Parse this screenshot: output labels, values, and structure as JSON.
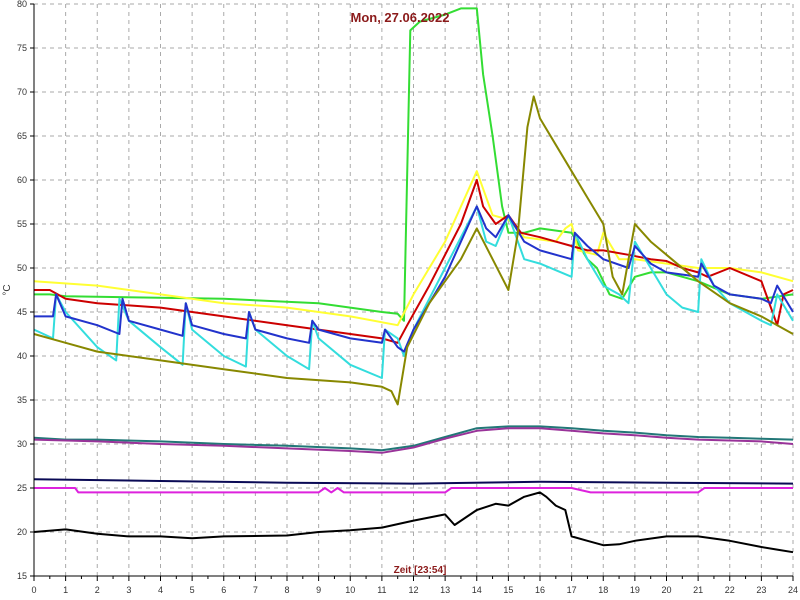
{
  "chart_data": {
    "type": "line",
    "title": "Mon, 27.06.2022",
    "xlabel": "Zeit [23:54]",
    "ylabel": "°C",
    "xlim": [
      0,
      24
    ],
    "ylim": [
      15,
      80
    ],
    "x_ticks": [
      0,
      1,
      2,
      3,
      4,
      5,
      6,
      7,
      8,
      9,
      10,
      11,
      12,
      13,
      14,
      15,
      16,
      17,
      18,
      19,
      20,
      21,
      22,
      23,
      24
    ],
    "y_ticks": [
      15,
      20,
      25,
      30,
      35,
      40,
      45,
      50,
      55,
      60,
      65,
      70,
      75,
      80
    ],
    "grid": true,
    "series": [
      {
        "color": "#33dd33",
        "points": [
          [
            0,
            47
          ],
          [
            0.5,
            47
          ],
          [
            1,
            46.8
          ],
          [
            6,
            46.5
          ],
          [
            9,
            46
          ],
          [
            11,
            45
          ],
          [
            11.5,
            44.8
          ],
          [
            11.7,
            44
          ],
          [
            11.9,
            77
          ],
          [
            12.2,
            78
          ],
          [
            13,
            78.8
          ],
          [
            13.5,
            79.5
          ],
          [
            14,
            79.5
          ],
          [
            14.2,
            72
          ],
          [
            14.5,
            65
          ],
          [
            14.8,
            57
          ],
          [
            15,
            54
          ],
          [
            15.5,
            54
          ],
          [
            16,
            54.5
          ],
          [
            17,
            54
          ],
          [
            17.5,
            51
          ],
          [
            17.8,
            50
          ],
          [
            18.2,
            47
          ],
          [
            18.6,
            46.5
          ],
          [
            19,
            49
          ],
          [
            19.5,
            49.5
          ],
          [
            20,
            49.5
          ],
          [
            21,
            48.5
          ],
          [
            22,
            47
          ],
          [
            23,
            46.5
          ],
          [
            24,
            47
          ]
        ]
      },
      {
        "color": "#ffff33",
        "points": [
          [
            0,
            48.5
          ],
          [
            2,
            48
          ],
          [
            4,
            47
          ],
          [
            6,
            46
          ],
          [
            8,
            45.5
          ],
          [
            10,
            44.5
          ],
          [
            11.5,
            43.5
          ],
          [
            12,
            47
          ],
          [
            13,
            53
          ],
          [
            14,
            61
          ],
          [
            14.5,
            56
          ],
          [
            15,
            55.5
          ],
          [
            15.5,
            53.5
          ],
          [
            16.5,
            53
          ],
          [
            16.8,
            54.5
          ],
          [
            17,
            55
          ],
          [
            17.2,
            52
          ],
          [
            17.8,
            51.5
          ],
          [
            18,
            54
          ],
          [
            18.5,
            51
          ],
          [
            19,
            51
          ],
          [
            20,
            50.5
          ],
          [
            21,
            50
          ],
          [
            22,
            50
          ],
          [
            23,
            49.5
          ],
          [
            24,
            48.5
          ]
        ]
      },
      {
        "color": "#cc0000",
        "points": [
          [
            0,
            47.5
          ],
          [
            0.5,
            47.5
          ],
          [
            1,
            46.5
          ],
          [
            2,
            46
          ],
          [
            4,
            45.5
          ],
          [
            6,
            44.5
          ],
          [
            8,
            43.5
          ],
          [
            10,
            42.5
          ],
          [
            11,
            42
          ],
          [
            11.5,
            41.5
          ],
          [
            11.8,
            43.5
          ],
          [
            12.5,
            48
          ],
          [
            13.5,
            55
          ],
          [
            14,
            60
          ],
          [
            14.2,
            57
          ],
          [
            14.6,
            55
          ],
          [
            15,
            56
          ],
          [
            15.4,
            54
          ],
          [
            16,
            53.5
          ],
          [
            17,
            52.5
          ],
          [
            17.5,
            52
          ],
          [
            18,
            52
          ],
          [
            18.8,
            51.5
          ],
          [
            19.5,
            51
          ],
          [
            20,
            50.8
          ],
          [
            20.5,
            50
          ],
          [
            21,
            49.5
          ],
          [
            21.3,
            49
          ],
          [
            22,
            50
          ],
          [
            23,
            48.5
          ],
          [
            23.5,
            43.5
          ],
          [
            23.7,
            47
          ],
          [
            24,
            47.5
          ]
        ]
      },
      {
        "color": "#33dddd",
        "points": [
          [
            0,
            43
          ],
          [
            0.6,
            42
          ],
          [
            0.7,
            47
          ],
          [
            1,
            45
          ],
          [
            2,
            41
          ],
          [
            2.6,
            39.5
          ],
          [
            2.7,
            46.5
          ],
          [
            3,
            44
          ],
          [
            4,
            41
          ],
          [
            4.7,
            39
          ],
          [
            4.8,
            46
          ],
          [
            5,
            43
          ],
          [
            6,
            40
          ],
          [
            6.7,
            38.8
          ],
          [
            6.8,
            45
          ],
          [
            7,
            43
          ],
          [
            8,
            40
          ],
          [
            8.7,
            38.5
          ],
          [
            8.8,
            44
          ],
          [
            9,
            42
          ],
          [
            10,
            39
          ],
          [
            11,
            37.5
          ],
          [
            11.1,
            43
          ],
          [
            11.5,
            42
          ],
          [
            11.7,
            40
          ],
          [
            12,
            43
          ],
          [
            13,
            50
          ],
          [
            14,
            57
          ],
          [
            14.3,
            53
          ],
          [
            14.6,
            52.5
          ],
          [
            15,
            56
          ],
          [
            15.5,
            51
          ],
          [
            16,
            50.5
          ],
          [
            17,
            49
          ],
          [
            17.1,
            54
          ],
          [
            17.5,
            51
          ],
          [
            18,
            48
          ],
          [
            18.5,
            47
          ],
          [
            18.8,
            46
          ],
          [
            19,
            53
          ],
          [
            19.5,
            50
          ],
          [
            20,
            47
          ],
          [
            20.5,
            45.5
          ],
          [
            21,
            45
          ],
          [
            21.1,
            51
          ],
          [
            21.5,
            48
          ],
          [
            22,
            46
          ],
          [
            23,
            44
          ],
          [
            23.3,
            43.5
          ],
          [
            23.5,
            47
          ],
          [
            24,
            44
          ]
        ]
      },
      {
        "color": "#2233cc",
        "points": [
          [
            0,
            44.5
          ],
          [
            0.6,
            44.5
          ],
          [
            0.7,
            47
          ],
          [
            1,
            44.5
          ],
          [
            2,
            43.5
          ],
          [
            2.7,
            42.5
          ],
          [
            2.8,
            46.5
          ],
          [
            3,
            44
          ],
          [
            4,
            43
          ],
          [
            4.7,
            42.3
          ],
          [
            4.8,
            46
          ],
          [
            5,
            43.5
          ],
          [
            6,
            42.5
          ],
          [
            6.7,
            42
          ],
          [
            6.8,
            45
          ],
          [
            7,
            43
          ],
          [
            8,
            42
          ],
          [
            8.7,
            41.5
          ],
          [
            8.8,
            44
          ],
          [
            9,
            43
          ],
          [
            10,
            42
          ],
          [
            11,
            41.5
          ],
          [
            11.1,
            43
          ],
          [
            11.5,
            41
          ],
          [
            11.7,
            40.5
          ],
          [
            12,
            43
          ],
          [
            13,
            49
          ],
          [
            14,
            57
          ],
          [
            14.3,
            54.5
          ],
          [
            14.6,
            53.5
          ],
          [
            15,
            56
          ],
          [
            15.5,
            53
          ],
          [
            16,
            52
          ],
          [
            17,
            51
          ],
          [
            17.1,
            54
          ],
          [
            17.5,
            52.5
          ],
          [
            18,
            51
          ],
          [
            18.8,
            50
          ],
          [
            19,
            52.5
          ],
          [
            19.5,
            50.5
          ],
          [
            20,
            49.5
          ],
          [
            21,
            49
          ],
          [
            21.1,
            50.5
          ],
          [
            21.5,
            48
          ],
          [
            22,
            47
          ],
          [
            23,
            46.5
          ],
          [
            23.3,
            46
          ],
          [
            23.5,
            48
          ],
          [
            24,
            45
          ]
        ]
      },
      {
        "color": "#888800",
        "points": [
          [
            0,
            42.5
          ],
          [
            1,
            41.5
          ],
          [
            2,
            40.5
          ],
          [
            4,
            39.5
          ],
          [
            6,
            38.5
          ],
          [
            8,
            37.5
          ],
          [
            10,
            37
          ],
          [
            11,
            36.5
          ],
          [
            11.3,
            36
          ],
          [
            11.5,
            34.5
          ],
          [
            11.8,
            41
          ],
          [
            12.5,
            46
          ],
          [
            13.5,
            51
          ],
          [
            14,
            54.5
          ],
          [
            14.5,
            51
          ],
          [
            15,
            47.5
          ],
          [
            15.3,
            54
          ],
          [
            15.6,
            66
          ],
          [
            15.8,
            69.5
          ],
          [
            16,
            67
          ],
          [
            16.5,
            64
          ],
          [
            17,
            61
          ],
          [
            17.5,
            58
          ],
          [
            18,
            55
          ],
          [
            18.3,
            49
          ],
          [
            18.6,
            47
          ],
          [
            19,
            55
          ],
          [
            19.5,
            53
          ],
          [
            20,
            51.5
          ],
          [
            21,
            48.5
          ],
          [
            22,
            46
          ],
          [
            23,
            44.5
          ],
          [
            23.5,
            43.5
          ],
          [
            24,
            42.5
          ]
        ]
      },
      {
        "color": "#227777",
        "points": [
          [
            0,
            30.7
          ],
          [
            1,
            30.5
          ],
          [
            2,
            30.5
          ],
          [
            4,
            30.3
          ],
          [
            6,
            30
          ],
          [
            8,
            29.8
          ],
          [
            10,
            29.5
          ],
          [
            11,
            29.3
          ],
          [
            12,
            29.8
          ],
          [
            13,
            30.8
          ],
          [
            14,
            31.8
          ],
          [
            15,
            32
          ],
          [
            16,
            32
          ],
          [
            17,
            31.8
          ],
          [
            18,
            31.5
          ],
          [
            19,
            31.3
          ],
          [
            20,
            31
          ],
          [
            21,
            30.8
          ],
          [
            22,
            30.7
          ],
          [
            23,
            30.6
          ],
          [
            24,
            30.5
          ]
        ]
      },
      {
        "color": "#993399",
        "points": [
          [
            0,
            30.5
          ],
          [
            2,
            30.3
          ],
          [
            4,
            30
          ],
          [
            6,
            29.8
          ],
          [
            8,
            29.5
          ],
          [
            10,
            29.2
          ],
          [
            11,
            29
          ],
          [
            12,
            29.6
          ],
          [
            13,
            30.6
          ],
          [
            14,
            31.5
          ],
          [
            15,
            31.8
          ],
          [
            16,
            31.8
          ],
          [
            17,
            31.5
          ],
          [
            18,
            31.2
          ],
          [
            19,
            31
          ],
          [
            20,
            30.7
          ],
          [
            21,
            30.5
          ],
          [
            22,
            30.4
          ],
          [
            23,
            30.3
          ],
          [
            24,
            30
          ]
        ]
      },
      {
        "color": "#0a0a55",
        "points": [
          [
            0,
            26
          ],
          [
            4,
            25.8
          ],
          [
            8,
            25.6
          ],
          [
            12,
            25.5
          ],
          [
            16,
            25.7
          ],
          [
            20,
            25.6
          ],
          [
            24,
            25.5
          ]
        ]
      },
      {
        "color": "#dd22dd",
        "points": [
          [
            0,
            25
          ],
          [
            1.3,
            25
          ],
          [
            1.4,
            24.5
          ],
          [
            9,
            24.5
          ],
          [
            9.2,
            25
          ],
          [
            9.4,
            24.5
          ],
          [
            9.6,
            25
          ],
          [
            9.8,
            24.5
          ],
          [
            13,
            24.5
          ],
          [
            13.2,
            25
          ],
          [
            17,
            25
          ],
          [
            17.6,
            24.5
          ],
          [
            21,
            24.5
          ],
          [
            21.2,
            25
          ],
          [
            24,
            25
          ]
        ]
      },
      {
        "color": "#000000",
        "points": [
          [
            0,
            20
          ],
          [
            1,
            20.3
          ],
          [
            2,
            19.8
          ],
          [
            3,
            19.5
          ],
          [
            4,
            19.5
          ],
          [
            5,
            19.3
          ],
          [
            6,
            19.5
          ],
          [
            8,
            19.6
          ],
          [
            9,
            20
          ],
          [
            10,
            20.2
          ],
          [
            11,
            20.5
          ],
          [
            12,
            21.3
          ],
          [
            13,
            22
          ],
          [
            13.3,
            20.8
          ],
          [
            14,
            22.5
          ],
          [
            14.6,
            23.2
          ],
          [
            15,
            23
          ],
          [
            15.5,
            24
          ],
          [
            16,
            24.5
          ],
          [
            16.2,
            24
          ],
          [
            16.5,
            23
          ],
          [
            16.8,
            22.5
          ],
          [
            17,
            19.5
          ],
          [
            17.5,
            19
          ],
          [
            18,
            18.5
          ],
          [
            18.5,
            18.6
          ],
          [
            19,
            19
          ],
          [
            20,
            19.5
          ],
          [
            21,
            19.5
          ],
          [
            22,
            19
          ],
          [
            23,
            18.3
          ],
          [
            23.5,
            18
          ],
          [
            24,
            17.7
          ]
        ]
      }
    ]
  }
}
